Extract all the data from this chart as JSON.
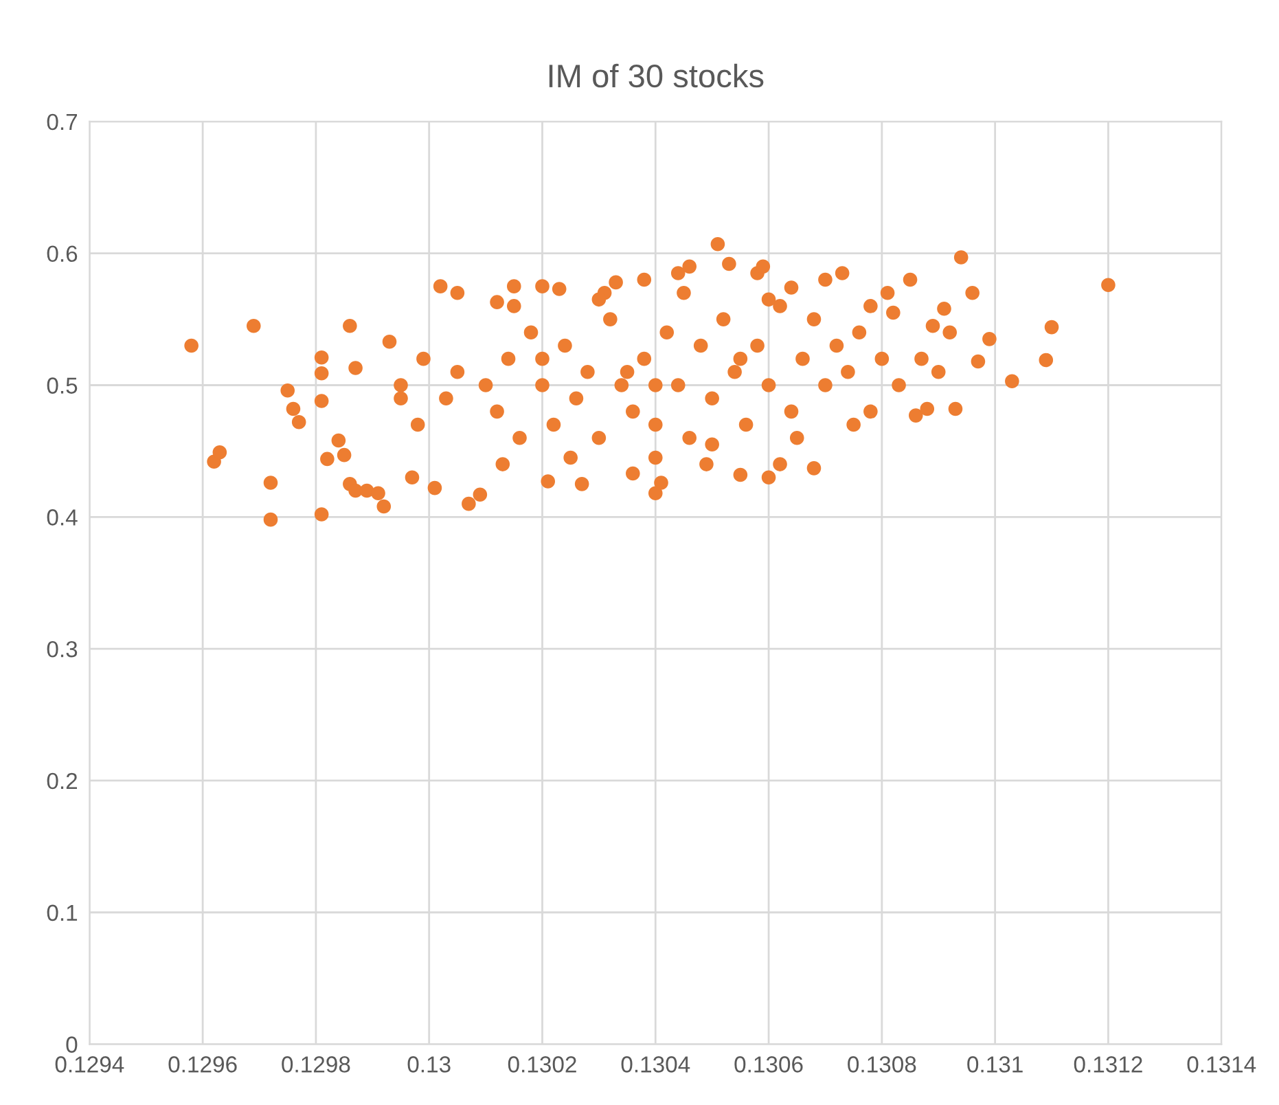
{
  "chart_data": {
    "type": "scatter",
    "title": "IM of 30 stocks",
    "x": [
      0.12958,
      0.12962,
      0.12963,
      0.12969,
      0.12972,
      0.12972,
      0.12975,
      0.12976,
      0.12977,
      0.12981,
      0.12981,
      0.12981,
      0.12981,
      0.12982,
      0.12984,
      0.12985,
      0.12986,
      0.12987,
      0.12986,
      0.12987,
      0.12989,
      0.12991,
      0.12992,
      0.12993,
      0.12995,
      0.12997,
      0.12999,
      0.13001,
      0.13002,
      0.13005,
      0.13007,
      0.13009,
      0.13012,
      0.13015,
      0.1302,
      0.13023,
      0.13021,
      0.13027,
      0.13031,
      0.13033,
      0.13036,
      0.13038,
      0.1304,
      0.13041,
      0.13044,
      0.13046,
      0.13049,
      0.13051,
      0.13053,
      0.13055,
      0.13058,
      0.13059,
      0.1306,
      0.13062,
      0.13064,
      0.13068,
      0.1307,
      0.13073,
      0.13075,
      0.13078,
      0.13081,
      0.13082,
      0.13085,
      0.13086,
      0.13087,
      0.13088,
      0.13089,
      0.1309,
      0.13091,
      0.13092,
      0.13093,
      0.13094,
      0.13096,
      0.13097,
      0.13099,
      0.13103,
      0.13109,
      0.1311,
      0.1312,
      0.1301,
      0.13012,
      0.13014,
      0.13016,
      0.13018,
      0.1302,
      0.13022,
      0.13024,
      0.13026,
      0.13028,
      0.1303,
      0.13032,
      0.13034,
      0.13036,
      0.13038,
      0.1304,
      0.13042,
      0.13044,
      0.13046,
      0.13048,
      0.1305,
      0.13052,
      0.13054,
      0.13056,
      0.13058,
      0.1306,
      0.13062,
      0.13064,
      0.13066,
      0.13068,
      0.1307,
      0.13072,
      0.13074,
      0.13076,
      0.13003,
      0.13005,
      0.12998,
      0.12995,
      0.13013,
      0.13025,
      0.1304,
      0.1305,
      0.13065,
      0.13015,
      0.1303,
      0.13045,
      0.1306,
      0.13078,
      0.1308,
      0.13083,
      0.13035,
      0.13055,
      0.1302,
      0.1304
    ],
    "values": [
      0.53,
      0.442,
      0.449,
      0.545,
      0.426,
      0.398,
      0.496,
      0.482,
      0.472,
      0.402,
      0.509,
      0.521,
      0.488,
      0.444,
      0.458,
      0.447,
      0.425,
      0.42,
      0.545,
      0.513,
      0.42,
      0.418,
      0.408,
      0.533,
      0.49,
      0.43,
      0.52,
      0.422,
      0.575,
      0.57,
      0.41,
      0.417,
      0.563,
      0.575,
      0.575,
      0.573,
      0.427,
      0.425,
      0.57,
      0.578,
      0.433,
      0.58,
      0.418,
      0.426,
      0.585,
      0.59,
      0.44,
      0.607,
      0.592,
      0.432,
      0.585,
      0.59,
      0.43,
      0.44,
      0.574,
      0.437,
      0.58,
      0.585,
      0.47,
      0.48,
      0.57,
      0.555,
      0.58,
      0.477,
      0.52,
      0.482,
      0.545,
      0.51,
      0.558,
      0.54,
      0.482,
      0.597,
      0.57,
      0.518,
      0.535,
      0.503,
      0.519,
      0.544,
      0.576,
      0.5,
      0.48,
      0.52,
      0.46,
      0.54,
      0.5,
      0.47,
      0.53,
      0.49,
      0.51,
      0.46,
      0.55,
      0.5,
      0.48,
      0.52,
      0.47,
      0.54,
      0.5,
      0.46,
      0.53,
      0.49,
      0.55,
      0.51,
      0.47,
      0.53,
      0.5,
      0.56,
      0.48,
      0.52,
      0.55,
      0.5,
      0.53,
      0.51,
      0.54,
      0.49,
      0.51,
      0.47,
      0.5,
      0.44,
      0.445,
      0.445,
      0.455,
      0.46,
      0.56,
      0.565,
      0.57,
      0.565,
      0.56,
      0.52,
      0.5,
      0.51,
      0.52,
      0.52,
      0.5
    ],
    "color": "#ed7d31",
    "marker": "circle",
    "grid": true,
    "xlim": [
      0.1294,
      0.1314
    ],
    "xticks": [
      0.1294,
      0.1296,
      0.1298,
      0.13,
      0.1302,
      0.1304,
      0.1306,
      0.1308,
      0.131,
      0.1312,
      0.1314
    ],
    "ylim": [
      0,
      0.7
    ],
    "yticks": [
      0,
      0.1,
      0.2,
      0.3,
      0.4,
      0.5,
      0.6,
      0.7
    ]
  }
}
